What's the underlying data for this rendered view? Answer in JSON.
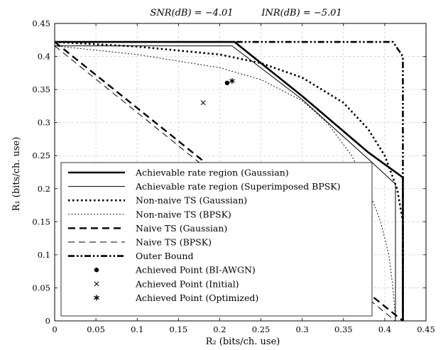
{
  "chart_data": {
    "type": "line",
    "title_parts": [
      "SNR(dB) = −4.01",
      "INR(dB) = −5.01"
    ],
    "xlabel": "R₂ (bits/ch. use)",
    "ylabel": "R₁ (bits/ch. use)",
    "xlim": [
      0,
      0.45
    ],
    "ylim": [
      0,
      0.45
    ],
    "x_ticks": [
      "0",
      "0.05",
      "0.1",
      "0.15",
      "0.2",
      "0.25",
      "0.3",
      "0.35",
      "0.4",
      "0.45"
    ],
    "y_ticks": [
      "0",
      "0.05",
      "0.1",
      "0.15",
      "0.2",
      "0.25",
      "0.3",
      "0.35",
      "0.4",
      "0.45"
    ],
    "grid": true,
    "legend_position": "bottom-left",
    "series": [
      {
        "name": "Achievable rate region (Gaussian)",
        "style": "thick-solid",
        "points": [
          [
            0,
            0.422
          ],
          [
            0.218,
            0.422
          ],
          [
            0.3,
            0.34
          ],
          [
            0.38,
            0.255
          ],
          [
            0.422,
            0.217
          ],
          [
            0.422,
            0
          ]
        ]
      },
      {
        "name": "Achievable rate region (Superimposed BPSK)",
        "style": "thin-solid",
        "points": [
          [
            0,
            0.416
          ],
          [
            0.215,
            0.416
          ],
          [
            0.3,
            0.335
          ],
          [
            0.38,
            0.245
          ],
          [
            0.413,
            0.207
          ],
          [
            0.413,
            0
          ]
        ]
      },
      {
        "name": "Non-naive TS (Gaussian)",
        "style": "thick-dotted",
        "points": [
          [
            0,
            0.422
          ],
          [
            0.1,
            0.415
          ],
          [
            0.2,
            0.403
          ],
          [
            0.25,
            0.39
          ],
          [
            0.3,
            0.368
          ],
          [
            0.35,
            0.33
          ],
          [
            0.38,
            0.29
          ],
          [
            0.4,
            0.25
          ],
          [
            0.415,
            0.2
          ],
          [
            0.422,
            0.15
          ],
          [
            0.422,
            0
          ]
        ]
      },
      {
        "name": "Non-naive TS (BPSK)",
        "style": "thin-dotted",
        "points": [
          [
            0,
            0.416
          ],
          [
            0.1,
            0.403
          ],
          [
            0.2,
            0.383
          ],
          [
            0.25,
            0.365
          ],
          [
            0.3,
            0.333
          ],
          [
            0.33,
            0.3
          ],
          [
            0.36,
            0.25
          ],
          [
            0.38,
            0.2
          ],
          [
            0.395,
            0.15
          ],
          [
            0.405,
            0.1
          ],
          [
            0.41,
            0.05
          ],
          [
            0.413,
            0
          ]
        ]
      },
      {
        "name": "Naive TS (Gaussian)",
        "style": "thick-dashed",
        "points": [
          [
            0,
            0.422
          ],
          [
            0.422,
            0
          ]
        ]
      },
      {
        "name": "Naive TS (BPSK)",
        "style": "thin-dashed",
        "points": [
          [
            0,
            0.416
          ],
          [
            0.413,
            0
          ]
        ]
      },
      {
        "name": "Outer Bound",
        "style": "thick-dashdotdot",
        "points": [
          [
            0.22,
            0.422
          ],
          [
            0.41,
            0.422
          ],
          [
            0.422,
            0.4
          ],
          [
            0.422,
            0
          ]
        ]
      }
    ],
    "markers": [
      {
        "name": "Achieved Point (BI-AWGN)",
        "marker": "dot",
        "x": 0.209,
        "y": 0.36
      },
      {
        "name": "Achieved Point (Initial)",
        "marker": "x",
        "x": 0.18,
        "y": 0.33
      },
      {
        "name": "Achieved Point (Optimized)",
        "marker": "asterisk",
        "x": 0.215,
        "y": 0.363
      }
    ]
  }
}
